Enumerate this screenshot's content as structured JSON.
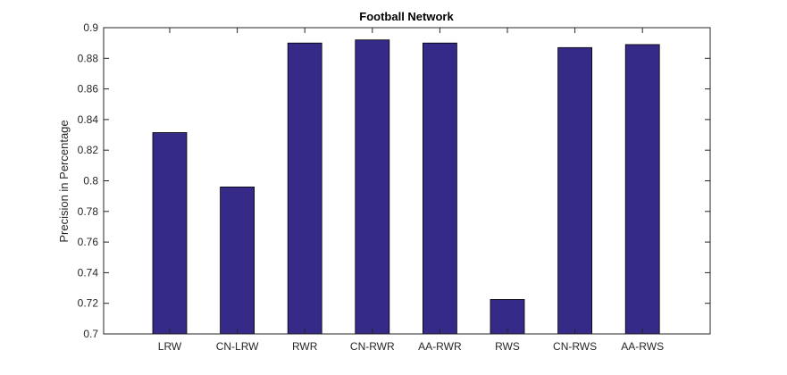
{
  "chart_data": {
    "type": "bar",
    "title": "Football Network",
    "xlabel": "",
    "ylabel": "Precision in Percentage",
    "categories": [
      "LRW",
      "CN-LRW",
      "RWR",
      "CN-RWR",
      "AA-RWR",
      "RWS",
      "CN-RWS",
      "AA-RWS"
    ],
    "values": [
      0.8315,
      0.796,
      0.89,
      0.892,
      0.89,
      0.7225,
      0.887,
      0.889
    ],
    "ylim": [
      0.7,
      0.9
    ],
    "yticks": [
      0.7,
      0.72,
      0.74,
      0.76,
      0.78,
      0.8,
      0.82,
      0.84,
      0.86,
      0.88,
      0.9
    ],
    "ytick_labels": [
      "0.7",
      "0.72",
      "0.74",
      "0.76",
      "0.78",
      "0.8",
      "0.82",
      "0.84",
      "0.86",
      "0.88",
      "0.9"
    ],
    "grid": false,
    "bar_color": "#352A87"
  }
}
